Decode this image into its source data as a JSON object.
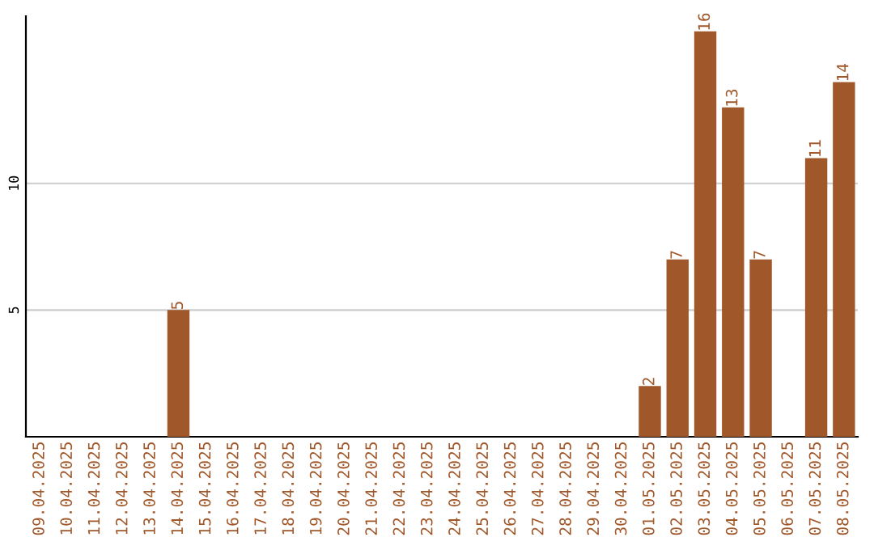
{
  "chart_data": {
    "type": "bar",
    "categories": [
      "09.04.2025",
      "10.04.2025",
      "11.04.2025",
      "12.04.2025",
      "13.04.2025",
      "14.04.2025",
      "15.04.2025",
      "16.04.2025",
      "17.04.2025",
      "18.04.2025",
      "19.04.2025",
      "20.04.2025",
      "21.04.2025",
      "22.04.2025",
      "23.04.2025",
      "24.04.2025",
      "25.04.2025",
      "26.04.2025",
      "27.04.2025",
      "28.04.2025",
      "29.04.2025",
      "30.04.2025",
      "01.05.2025",
      "02.05.2025",
      "03.05.2025",
      "04.05.2025",
      "05.05.2025",
      "06.05.2025",
      "07.05.2025",
      "08.05.2025"
    ],
    "values": [
      0,
      0,
      0,
      0,
      0,
      5,
      0,
      0,
      0,
      0,
      0,
      0,
      0,
      0,
      0,
      0,
      0,
      0,
      0,
      0,
      0,
      0,
      2,
      7,
      16,
      13,
      7,
      0,
      11,
      14
    ],
    "value_labels": [
      null,
      null,
      null,
      null,
      null,
      "5",
      null,
      null,
      null,
      null,
      null,
      null,
      null,
      null,
      null,
      null,
      null,
      null,
      null,
      null,
      null,
      null,
      "2",
      "7",
      "16",
      "13",
      "7",
      null,
      "11",
      "14"
    ],
    "color": "#a0582a",
    "ylim": [
      0,
      16.6
    ],
    "yticks": [
      5,
      10
    ],
    "grid": "y"
  }
}
